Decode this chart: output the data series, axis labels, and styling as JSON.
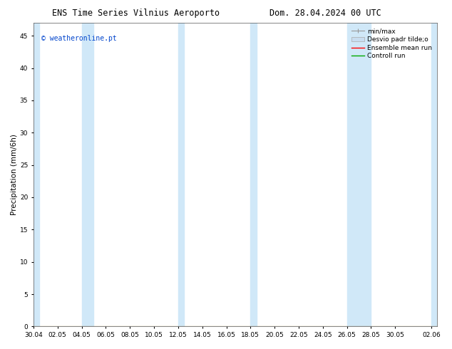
{
  "title_left": "ENS Time Series Vilnius Aeroporto",
  "title_right": "Dom. 28.04.2024 00 UTC",
  "ylabel": "Precipitation (mm/6h)",
  "watermark": "© weatheronline.pt",
  "watermark_color": "#0044cc",
  "background_color": "#ffffff",
  "plot_bg_color": "#ffffff",
  "ylim": [
    0,
    47
  ],
  "yticks": [
    0,
    5,
    10,
    15,
    20,
    25,
    30,
    35,
    40,
    45
  ],
  "xtick_labels": [
    "30.04",
    "02.05",
    "04.05",
    "06.05",
    "08.05",
    "10.05",
    "12.05",
    "14.05",
    "16.05",
    "18.05",
    "20.05",
    "22.05",
    "24.05",
    "26.05",
    "28.05",
    "30.05",
    "02.06"
  ],
  "xtick_positions": [
    0,
    2,
    4,
    6,
    8,
    10,
    12,
    14,
    16,
    18,
    20,
    22,
    24,
    26,
    28,
    30,
    33
  ],
  "shaded_bands": [
    [
      0,
      0.5
    ],
    [
      4,
      5.5
    ],
    [
      12,
      12.5
    ],
    [
      18,
      18.5
    ],
    [
      26,
      28
    ],
    [
      33,
      33.5
    ]
  ],
  "shade_color": "#d0e8f8",
  "minmax_color": "#999999",
  "std_color": "#c8ddf0",
  "mean_color": "#ff0000",
  "control_color": "#00aa00",
  "legend_labels": [
    "min/max",
    "Desvio padr tilde;o",
    "Ensemble mean run",
    "Controll run"
  ],
  "font_size_title": 8.5,
  "font_size_axis": 7.5,
  "font_size_ticks": 6.5,
  "font_size_watermark": 7,
  "font_size_legend": 6.5
}
